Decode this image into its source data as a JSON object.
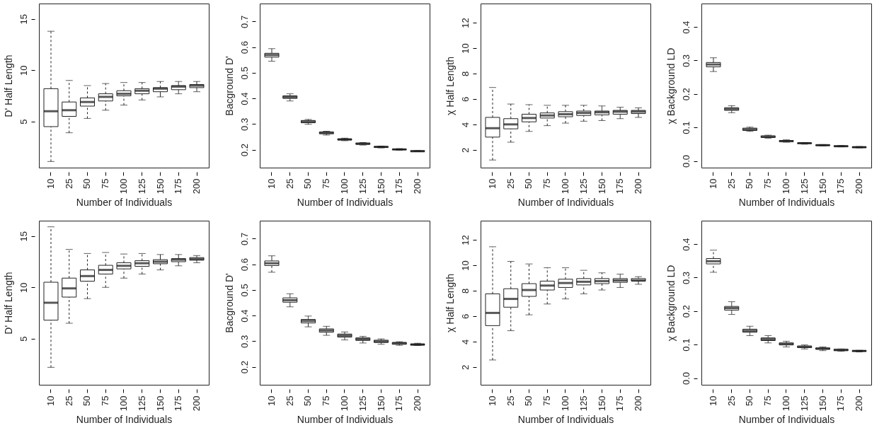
{
  "chart_data": [
    {
      "type": "box",
      "categories": [
        "10",
        "25",
        "50",
        "75",
        "100",
        "125",
        "150",
        "175",
        "200"
      ],
      "xlabel": "Number of Individuals",
      "ylabel": "D' Half Length",
      "ylim": [
        0.5,
        16.5
      ],
      "yticks": [
        5,
        10,
        15
      ],
      "boxes": [
        {
          "low": 1.1,
          "q1": 4.5,
          "median": 6.0,
          "q3": 8.2,
          "high": 13.8
        },
        {
          "low": 3.9,
          "q1": 5.5,
          "median": 6.1,
          "q3": 6.9,
          "high": 9.0
        },
        {
          "low": 5.3,
          "q1": 6.5,
          "median": 6.9,
          "q3": 7.3,
          "high": 8.5
        },
        {
          "low": 6.1,
          "q1": 7.0,
          "median": 7.4,
          "q3": 7.7,
          "high": 8.7
        },
        {
          "low": 6.6,
          "q1": 7.5,
          "median": 7.7,
          "q3": 8.0,
          "high": 8.8
        },
        {
          "low": 7.1,
          "q1": 7.7,
          "median": 8.0,
          "q3": 8.2,
          "high": 8.8
        },
        {
          "low": 7.4,
          "q1": 7.9,
          "median": 8.2,
          "q3": 8.3,
          "high": 8.9
        },
        {
          "low": 7.7,
          "q1": 8.1,
          "median": 8.4,
          "q3": 8.5,
          "high": 8.9
        },
        {
          "low": 7.9,
          "q1": 8.3,
          "median": 8.5,
          "q3": 8.6,
          "high": 8.9
        }
      ]
    },
    {
      "type": "box",
      "categories": [
        "10",
        "25",
        "50",
        "75",
        "100",
        "125",
        "150",
        "175",
        "200"
      ],
      "xlabel": "Number of Individuals",
      "ylabel": "Bacground D'",
      "ylim": [
        0.13,
        0.77
      ],
      "yticks": [
        0.2,
        0.3,
        0.4,
        0.5,
        0.6,
        0.7
      ],
      "boxes": [
        {
          "low": 0.545,
          "q1": 0.561,
          "median": 0.569,
          "q3": 0.576,
          "high": 0.594
        },
        {
          "low": 0.39,
          "q1": 0.4,
          "median": 0.405,
          "q3": 0.41,
          "high": 0.418
        },
        {
          "low": 0.299,
          "q1": 0.305,
          "median": 0.309,
          "q3": 0.314,
          "high": 0.318
        },
        {
          "low": 0.257,
          "q1": 0.262,
          "median": 0.266,
          "q3": 0.269,
          "high": 0.272
        },
        {
          "low": 0.235,
          "q1": 0.238,
          "median": 0.24,
          "q3": 0.242,
          "high": 0.245
        },
        {
          "low": 0.218,
          "q1": 0.221,
          "median": 0.223,
          "q3": 0.226,
          "high": 0.228
        },
        {
          "low": 0.207,
          "q1": 0.209,
          "median": 0.211,
          "q3": 0.212,
          "high": 0.214
        },
        {
          "low": 0.198,
          "q1": 0.2,
          "median": 0.201,
          "q3": 0.202,
          "high": 0.204
        },
        {
          "low": 0.192,
          "q1": 0.193,
          "median": 0.194,
          "q3": 0.196,
          "high": 0.197
        }
      ]
    },
    {
      "type": "box",
      "categories": [
        "10",
        "25",
        "50",
        "75",
        "100",
        "125",
        "150",
        "175",
        "200"
      ],
      "xlabel": "Number of Individuals",
      "ylabel": "χ Half Length",
      "ylim": [
        0.6,
        13.5
      ],
      "yticks": [
        2,
        4,
        6,
        8,
        10,
        12
      ],
      "boxes": [
        {
          "low": 1.2,
          "q1": 3.0,
          "median": 3.7,
          "q3": 4.55,
          "high": 6.9
        },
        {
          "low": 2.6,
          "q1": 3.65,
          "median": 4.0,
          "q3": 4.45,
          "high": 5.6
        },
        {
          "low": 3.45,
          "q1": 4.2,
          "median": 4.5,
          "q3": 4.8,
          "high": 5.55
        },
        {
          "low": 3.9,
          "q1": 4.5,
          "median": 4.7,
          "q3": 4.9,
          "high": 5.5
        },
        {
          "low": 4.1,
          "q1": 4.6,
          "median": 4.8,
          "q3": 5.0,
          "high": 5.5
        },
        {
          "low": 4.25,
          "q1": 4.7,
          "median": 4.9,
          "q3": 5.05,
          "high": 5.5
        },
        {
          "low": 4.3,
          "q1": 4.75,
          "median": 4.95,
          "q3": 5.05,
          "high": 5.45
        },
        {
          "low": 4.45,
          "q1": 4.8,
          "median": 5.0,
          "q3": 5.1,
          "high": 5.35
        },
        {
          "low": 4.55,
          "q1": 4.85,
          "median": 5.0,
          "q3": 5.1,
          "high": 5.3
        }
      ]
    },
    {
      "type": "box",
      "categories": [
        "10",
        "25",
        "50",
        "75",
        "100",
        "125",
        "150",
        "175",
        "200"
      ],
      "xlabel": "Number of Individuals",
      "ylabel": "χ Background LD",
      "ylim": [
        -0.02,
        0.47
      ],
      "yticks": [
        {
          "value": 0,
          "label": "0.0"
        },
        0.1,
        0.2,
        0.3,
        0.4
      ],
      "boxes": [
        {
          "low": 0.267,
          "q1": 0.281,
          "median": 0.288,
          "q3": 0.294,
          "high": 0.308
        },
        {
          "low": 0.144,
          "q1": 0.151,
          "median": 0.155,
          "q3": 0.159,
          "high": 0.165
        },
        {
          "low": 0.088,
          "q1": 0.091,
          "median": 0.094,
          "q3": 0.098,
          "high": 0.101
        },
        {
          "low": 0.068,
          "q1": 0.07,
          "median": 0.072,
          "q3": 0.075,
          "high": 0.077
        },
        {
          "low": 0.056,
          "q1": 0.058,
          "median": 0.059,
          "q3": 0.061,
          "high": 0.063
        },
        {
          "low": 0.05,
          "q1": 0.052,
          "median": 0.053,
          "q3": 0.054,
          "high": 0.055
        },
        {
          "low": 0.045,
          "q1": 0.046,
          "median": 0.047,
          "q3": 0.048,
          "high": 0.049
        },
        {
          "low": 0.042,
          "q1": 0.043,
          "median": 0.044,
          "q3": 0.045,
          "high": 0.046
        },
        {
          "low": 0.039,
          "q1": 0.04,
          "median": 0.041,
          "q3": 0.042,
          "high": 0.043
        }
      ]
    },
    {
      "type": "box",
      "categories": [
        "10",
        "25",
        "50",
        "75",
        "100",
        "125",
        "150",
        "175",
        "200"
      ],
      "xlabel": "Number of Individuals",
      "ylabel": "D' Half Length",
      "ylim": [
        0.5,
        16.5
      ],
      "yticks": [
        5,
        10,
        15
      ],
      "boxes": [
        {
          "low": 2.2,
          "q1": 6.8,
          "median": 8.5,
          "q3": 10.5,
          "high": 15.9
        },
        {
          "low": 6.5,
          "q1": 9.05,
          "median": 9.9,
          "q3": 10.9,
          "high": 13.7
        },
        {
          "low": 8.9,
          "q1": 10.6,
          "median": 11.1,
          "q3": 11.7,
          "high": 13.3
        },
        {
          "low": 10.0,
          "q1": 11.3,
          "median": 11.7,
          "q3": 12.15,
          "high": 13.4
        },
        {
          "low": 10.9,
          "q1": 11.8,
          "median": 12.1,
          "q3": 12.4,
          "high": 13.25
        },
        {
          "low": 11.3,
          "q1": 12.05,
          "median": 12.35,
          "q3": 12.6,
          "high": 13.3
        },
        {
          "low": 11.7,
          "q1": 12.3,
          "median": 12.5,
          "q3": 12.7,
          "high": 13.2
        },
        {
          "low": 12.1,
          "q1": 12.5,
          "median": 12.7,
          "q3": 12.8,
          "high": 13.2
        },
        {
          "low": 12.4,
          "q1": 12.65,
          "median": 12.75,
          "q3": 12.9,
          "high": 13.1
        }
      ]
    },
    {
      "type": "box",
      "categories": [
        "10",
        "25",
        "50",
        "75",
        "100",
        "125",
        "150",
        "175",
        "200"
      ],
      "xlabel": "Number of Individuals",
      "ylabel": "Bacground D'",
      "ylim": [
        0.13,
        0.77
      ],
      "yticks": [
        0.2,
        0.3,
        0.4,
        0.5,
        0.6,
        0.7
      ],
      "boxes": [
        {
          "low": 0.569,
          "q1": 0.595,
          "median": 0.604,
          "q3": 0.613,
          "high": 0.633
        },
        {
          "low": 0.434,
          "q1": 0.452,
          "median": 0.46,
          "q3": 0.469,
          "high": 0.485
        },
        {
          "low": 0.356,
          "q1": 0.371,
          "median": 0.379,
          "q3": 0.385,
          "high": 0.398
        },
        {
          "low": 0.323,
          "q1": 0.335,
          "median": 0.342,
          "q3": 0.348,
          "high": 0.358
        },
        {
          "low": 0.305,
          "q1": 0.316,
          "median": 0.322,
          "q3": 0.328,
          "high": 0.336
        },
        {
          "low": 0.293,
          "q1": 0.303,
          "median": 0.308,
          "q3": 0.313,
          "high": 0.319
        },
        {
          "low": 0.288,
          "q1": 0.295,
          "median": 0.299,
          "q3": 0.304,
          "high": 0.309
        },
        {
          "low": 0.284,
          "q1": 0.288,
          "median": 0.292,
          "q3": 0.295,
          "high": 0.298
        },
        {
          "low": 0.283,
          "q1": 0.285,
          "median": 0.287,
          "q3": 0.289,
          "high": 0.292
        }
      ]
    },
    {
      "type": "box",
      "categories": [
        "10",
        "25",
        "50",
        "75",
        "100",
        "125",
        "150",
        "175",
        "200"
      ],
      "xlabel": "Number of Individuals",
      "ylabel": "χ Half Length",
      "ylim": [
        0.6,
        13.5
      ],
      "yticks": [
        2,
        4,
        6,
        8,
        10,
        12
      ],
      "boxes": [
        {
          "low": 2.55,
          "q1": 5.25,
          "median": 6.25,
          "q3": 7.75,
          "high": 11.45
        },
        {
          "low": 4.85,
          "q1": 6.7,
          "median": 7.35,
          "q3": 8.15,
          "high": 10.3
        },
        {
          "low": 6.1,
          "q1": 7.55,
          "median": 8.05,
          "q3": 8.55,
          "high": 10.1
        },
        {
          "low": 6.95,
          "q1": 8.05,
          "median": 8.4,
          "q3": 8.75,
          "high": 9.8
        },
        {
          "low": 7.35,
          "q1": 8.25,
          "median": 8.6,
          "q3": 8.9,
          "high": 9.8
        },
        {
          "low": 7.75,
          "q1": 8.45,
          "median": 8.7,
          "q3": 8.95,
          "high": 9.6
        },
        {
          "low": 8.05,
          "q1": 8.55,
          "median": 8.75,
          "q3": 8.95,
          "high": 9.4
        },
        {
          "low": 8.25,
          "q1": 8.65,
          "median": 8.8,
          "q3": 8.95,
          "high": 9.3
        },
        {
          "low": 8.5,
          "q1": 8.75,
          "median": 8.8,
          "q3": 8.95,
          "high": 9.1
        }
      ]
    },
    {
      "type": "box",
      "categories": [
        "10",
        "25",
        "50",
        "75",
        "100",
        "125",
        "150",
        "175",
        "200"
      ],
      "xlabel": "Number of Individuals",
      "ylabel": "χ Background LD",
      "ylim": [
        -0.02,
        0.47
      ],
      "yticks": [
        {
          "value": 0,
          "label": "0.0"
        },
        0.1,
        0.2,
        0.3,
        0.4
      ],
      "boxes": [
        {
          "low": 0.316,
          "q1": 0.341,
          "median": 0.349,
          "q3": 0.357,
          "high": 0.382
        },
        {
          "low": 0.19,
          "q1": 0.203,
          "median": 0.209,
          "q3": 0.214,
          "high": 0.228
        },
        {
          "low": 0.127,
          "q1": 0.137,
          "median": 0.141,
          "q3": 0.146,
          "high": 0.155
        },
        {
          "low": 0.105,
          "q1": 0.112,
          "median": 0.116,
          "q3": 0.12,
          "high": 0.127
        },
        {
          "low": 0.093,
          "q1": 0.099,
          "median": 0.102,
          "q3": 0.105,
          "high": 0.11
        },
        {
          "low": 0.087,
          "q1": 0.091,
          "median": 0.093,
          "q3": 0.096,
          "high": 0.099
        },
        {
          "low": 0.082,
          "q1": 0.086,
          "median": 0.088,
          "q3": 0.09,
          "high": 0.093
        },
        {
          "low": 0.08,
          "q1": 0.082,
          "median": 0.084,
          "q3": 0.086,
          "high": 0.087
        },
        {
          "low": 0.078,
          "q1": 0.08,
          "median": 0.081,
          "q3": 0.082,
          "high": 0.083
        }
      ]
    }
  ]
}
